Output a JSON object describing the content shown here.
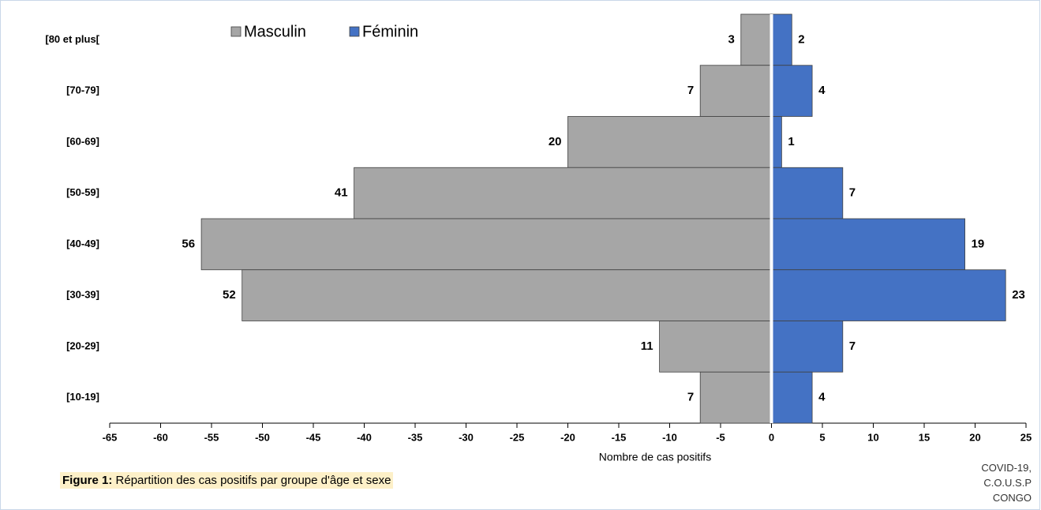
{
  "chart_data": {
    "type": "pyramid",
    "x_label": "Nombre de cas positifs",
    "caption_label": "Figure 1:",
    "caption": "Répartition des cas positifs par groupe d'âge et sexe",
    "source": [
      "COVID-19,",
      "C.O.U.S.P",
      "CONGO"
    ],
    "categories": [
      "[80 et plus[",
      "[70-79]",
      "[60-69]",
      "[50-59]",
      "[40-49]",
      "[30-39]",
      "[20-29]",
      "[10-19]"
    ],
    "series": [
      {
        "name": "Masculin",
        "color": "#a6a6a6",
        "values": [
          -3,
          -7,
          -20,
          -41,
          -56,
          -52,
          -11,
          -7
        ],
        "value_labels": [
          "3",
          "7",
          "20",
          "41",
          "56",
          "52",
          "11",
          "7"
        ]
      },
      {
        "name": "Féminin",
        "color": "#4472c4",
        "values": [
          2,
          4,
          1,
          7,
          19,
          23,
          7,
          4
        ]
      }
    ],
    "xlim": [
      -65,
      25
    ],
    "xticks": [
      -65,
      -60,
      -55,
      -50,
      -45,
      -40,
      -35,
      -30,
      -25,
      -20,
      -15,
      -10,
      -5,
      0,
      5,
      10,
      15,
      20,
      25
    ]
  }
}
